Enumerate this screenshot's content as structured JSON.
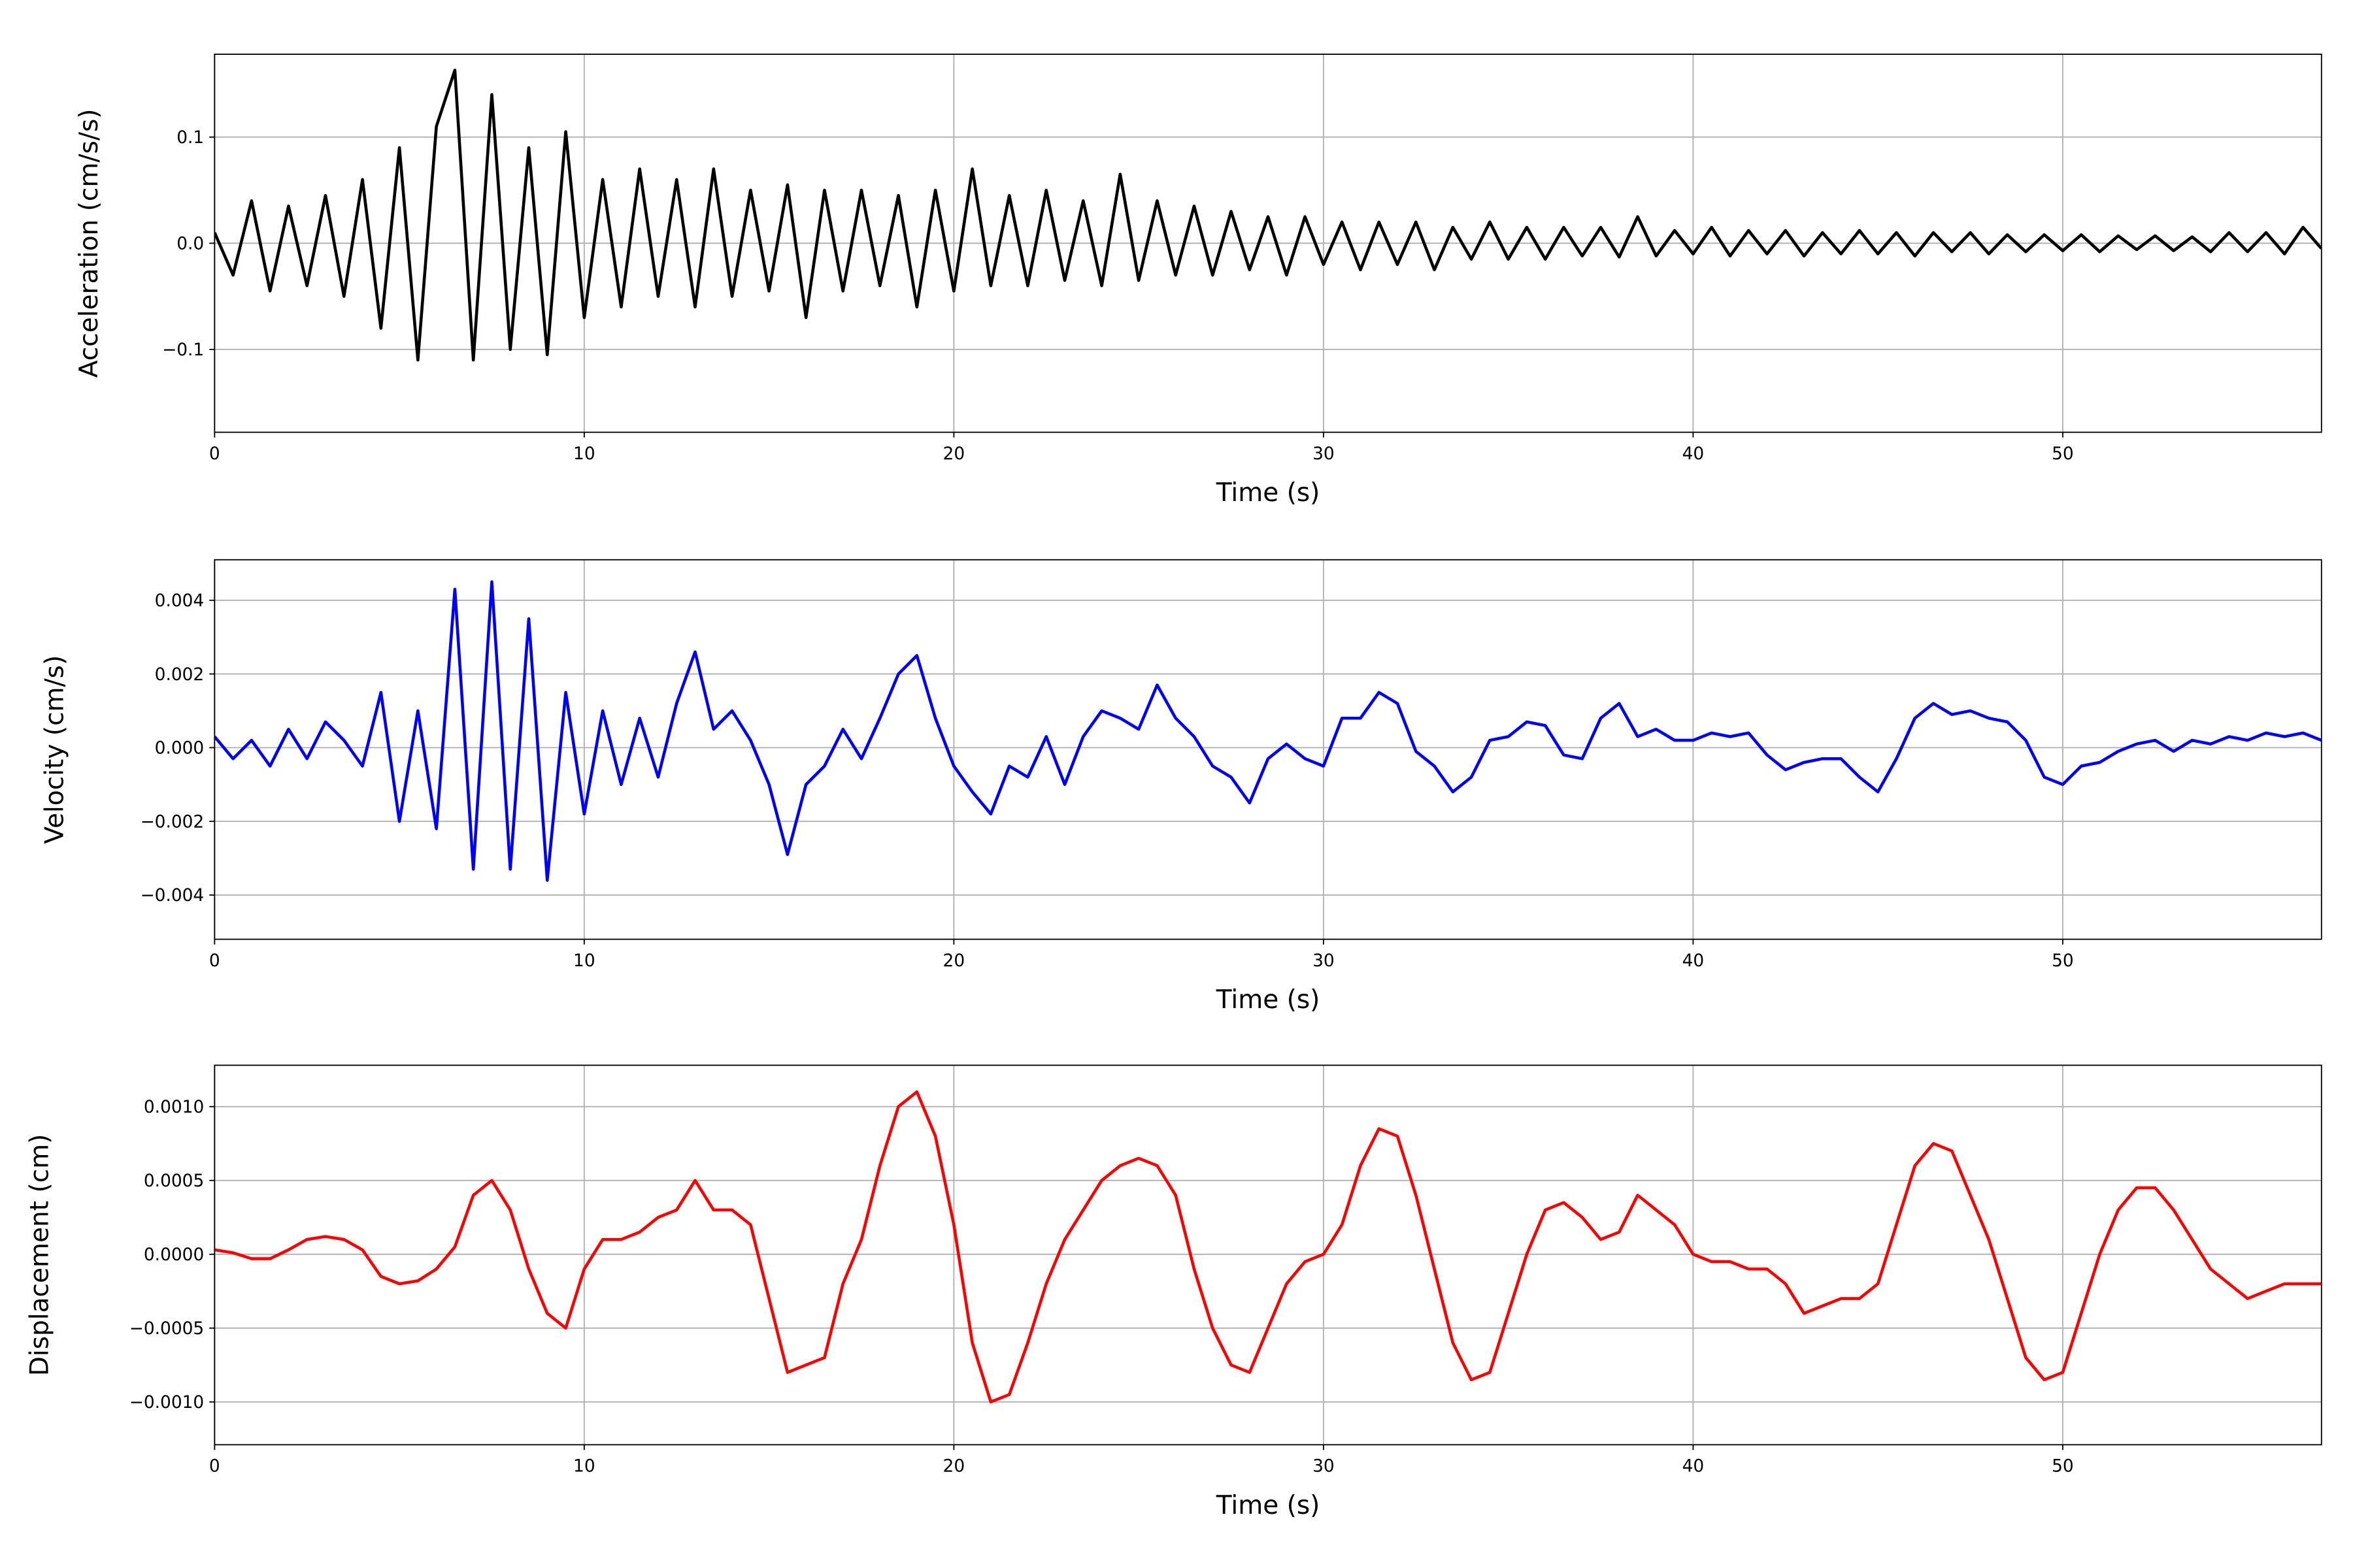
{
  "chart_data": [
    {
      "type": "line",
      "xlabel": "Time (s)",
      "ylabel": "Acceleration (cm/s/s)",
      "x": [
        0,
        0.5,
        1,
        1.5,
        2,
        2.5,
        3,
        3.5,
        4,
        4.5,
        5,
        5.5,
        6,
        6.5,
        7,
        7.5,
        8,
        8.5,
        9,
        9.5,
        10,
        10.5,
        11,
        11.5,
        12,
        12.5,
        13,
        13.5,
        14,
        14.5,
        15,
        15.5,
        16,
        16.5,
        17,
        17.5,
        18,
        18.5,
        19,
        19.5,
        20,
        20.5,
        21,
        21.5,
        22,
        22.5,
        23,
        23.5,
        24,
        24.5,
        25,
        25.5,
        26,
        26.5,
        27,
        27.5,
        28,
        28.5,
        29,
        29.5,
        30,
        30.5,
        31,
        31.5,
        32,
        32.5,
        33,
        33.5,
        34,
        34.5,
        35,
        35.5,
        36,
        36.5,
        37,
        37.5,
        38,
        38.5,
        39,
        39.5,
        40,
        40.5,
        41,
        41.5,
        42,
        42.5,
        43,
        43.5,
        44,
        44.5,
        45,
        45.5,
        46,
        46.5,
        47,
        47.5,
        48,
        48.5,
        49,
        49.5,
        50,
        50.5,
        51,
        51.5,
        52,
        52.5,
        53,
        53.5,
        54,
        54.5,
        55,
        55.5,
        56,
        56.5,
        57
      ],
      "series": [
        {
          "color": "#000000",
          "values": [
            0.01,
            -0.03,
            0.04,
            -0.045,
            0.035,
            -0.04,
            0.045,
            -0.05,
            0.06,
            -0.08,
            0.09,
            -0.11,
            0.11,
            0.163,
            -0.11,
            0.14,
            -0.1,
            0.09,
            -0.105,
            0.105,
            -0.07,
            0.06,
            -0.06,
            0.07,
            -0.05,
            0.06,
            -0.06,
            0.07,
            -0.05,
            0.05,
            -0.045,
            0.055,
            -0.07,
            0.05,
            -0.045,
            0.05,
            -0.04,
            0.045,
            -0.06,
            0.05,
            -0.045,
            0.07,
            -0.04,
            0.045,
            -0.04,
            0.05,
            -0.035,
            0.04,
            -0.04,
            0.065,
            -0.035,
            0.04,
            -0.03,
            0.035,
            -0.03,
            0.03,
            -0.025,
            0.025,
            -0.03,
            0.025,
            -0.02,
            0.02,
            -0.025,
            0.02,
            -0.02,
            0.02,
            -0.025,
            0.015,
            -0.015,
            0.02,
            -0.015,
            0.015,
            -0.015,
            0.015,
            -0.012,
            0.015,
            -0.013,
            0.025,
            -0.012,
            0.012,
            -0.01,
            0.015,
            -0.012,
            0.012,
            -0.01,
            0.012,
            -0.012,
            0.01,
            -0.01,
            0.012,
            -0.01,
            0.01,
            -0.012,
            0.01,
            -0.008,
            0.01,
            -0.01,
            0.008,
            -0.008,
            0.008,
            -0.007,
            0.008,
            -0.008,
            0.007,
            -0.006,
            0.007,
            -0.007,
            0.006,
            -0.008,
            0.01,
            -0.008,
            0.01,
            -0.01,
            0.015,
            -0.005
          ]
        }
      ],
      "xlim": [
        0,
        57
      ],
      "ylim": [
        -0.178,
        0.178
      ],
      "xticks": [
        0,
        10,
        20,
        30,
        40,
        50
      ],
      "yticks": [
        {
          "value": -0.1,
          "label": "−0.1"
        },
        {
          "value": 0,
          "label": "0.0"
        },
        0.1
      ],
      "grid": true
    },
    {
      "type": "line",
      "xlabel": "Time (s)",
      "ylabel": "Velocity (cm/s)",
      "x": [
        0,
        0.5,
        1,
        1.5,
        2,
        2.5,
        3,
        3.5,
        4,
        4.5,
        5,
        5.5,
        6,
        6.5,
        7,
        7.5,
        8,
        8.5,
        9,
        9.5,
        10,
        10.5,
        11,
        11.5,
        12,
        12.5,
        13,
        13.5,
        14,
        14.5,
        15,
        15.5,
        16,
        16.5,
        17,
        17.5,
        18,
        18.5,
        19,
        19.5,
        20,
        20.5,
        21,
        21.5,
        22,
        22.5,
        23,
        23.5,
        24,
        24.5,
        25,
        25.5,
        26,
        26.5,
        27,
        27.5,
        28,
        28.5,
        29,
        29.5,
        30,
        30.5,
        31,
        31.5,
        32,
        32.5,
        33,
        33.5,
        34,
        34.5,
        35,
        35.5,
        36,
        36.5,
        37,
        37.5,
        38,
        38.5,
        39,
        39.5,
        40,
        40.5,
        41,
        41.5,
        42,
        42.5,
        43,
        43.5,
        44,
        44.5,
        45,
        45.5,
        46,
        46.5,
        47,
        47.5,
        48,
        48.5,
        49,
        49.5,
        50,
        50.5,
        51,
        51.5,
        52,
        52.5,
        53,
        53.5,
        54,
        54.5,
        55,
        55.5,
        56,
        56.5,
        57
      ],
      "series": [
        {
          "color": "#0000ff",
          "values": [
            0.0003,
            -0.0003,
            0.0002,
            -0.0005,
            0.0005,
            -0.0003,
            0.0007,
            0.0002,
            -0.0005,
            0.0015,
            -0.002,
            0.001,
            -0.0022,
            0.0043,
            -0.0033,
            0.0045,
            -0.0033,
            0.0035,
            -0.0036,
            0.0015,
            -0.0018,
            0.001,
            -0.001,
            0.0008,
            -0.0008,
            0.0012,
            0.0026,
            0.0005,
            0.001,
            0.0002,
            -0.001,
            -0.0029,
            -0.001,
            -0.0005,
            0.0005,
            -0.0003,
            0.0008,
            0.002,
            0.0025,
            0.0008,
            -0.0005,
            -0.0012,
            -0.0018,
            -0.0005,
            -0.0008,
            0.0003,
            -0.001,
            0.0003,
            0.001,
            0.0008,
            0.0005,
            0.0017,
            0.0008,
            0.0003,
            -0.0005,
            -0.0008,
            -0.0015,
            -0.0003,
            0.0001,
            -0.0003,
            -0.0005,
            0.0008,
            0.0008,
            0.0015,
            0.0012,
            -0.0001,
            -0.0005,
            -0.0012,
            -0.0008,
            0.0002,
            0.0003,
            0.0007,
            0.0006,
            -0.0002,
            -0.0003,
            0.0008,
            0.0012,
            0.0003,
            0.0005,
            0.0002,
            0.0002,
            0.0004,
            0.0003,
            0.0004,
            -0.0002,
            -0.0006,
            -0.0004,
            -0.0003,
            -0.0003,
            -0.0008,
            -0.0012,
            -0.0003,
            0.0008,
            0.0012,
            0.0009,
            0.001,
            0.0008,
            0.0007,
            0.0002,
            -0.0008,
            -0.001,
            -0.0005,
            -0.0004,
            -0.0001,
            0.0001,
            0.0002,
            -0.0001,
            0.0002,
            0.0001,
            0.0003,
            0.0002,
            0.0004,
            0.0003,
            0.0004,
            0.0002
          ]
        }
      ],
      "xlim": [
        0,
        57
      ],
      "ylim": [
        -0.0052,
        0.0051
      ],
      "xticks": [
        0,
        10,
        20,
        30,
        40,
        50
      ],
      "yticks": [
        {
          "value": -0.004,
          "label": "−0.004"
        },
        {
          "value": -0.002,
          "label": "−0.002"
        },
        {
          "value": 0,
          "label": "0.000"
        },
        0.002,
        0.004
      ],
      "grid": true
    },
    {
      "type": "line",
      "xlabel": "Time (s)",
      "ylabel": "Displacement (cm)",
      "x": [
        0,
        0.5,
        1,
        1.5,
        2,
        2.5,
        3,
        3.5,
        4,
        4.5,
        5,
        5.5,
        6,
        6.5,
        7,
        7.5,
        8,
        8.5,
        9,
        9.5,
        10,
        10.5,
        11,
        11.5,
        12,
        12.5,
        13,
        13.5,
        14,
        14.5,
        15,
        15.5,
        16,
        16.5,
        17,
        17.5,
        18,
        18.5,
        19,
        19.5,
        20,
        20.5,
        21,
        21.5,
        22,
        22.5,
        23,
        23.5,
        24,
        24.5,
        25,
        25.5,
        26,
        26.5,
        27,
        27.5,
        28,
        28.5,
        29,
        29.5,
        30,
        30.5,
        31,
        31.5,
        32,
        32.5,
        33,
        33.5,
        34,
        34.5,
        35,
        35.5,
        36,
        36.5,
        37,
        37.5,
        38,
        38.5,
        39,
        39.5,
        40,
        40.5,
        41,
        41.5,
        42,
        42.5,
        43,
        43.5,
        44,
        44.5,
        45,
        45.5,
        46,
        46.5,
        47,
        47.5,
        48,
        48.5,
        49,
        49.5,
        50,
        50.5,
        51,
        51.5,
        52,
        52.5,
        53,
        53.5,
        54,
        54.5,
        55,
        55.5,
        56,
        56.5,
        57
      ],
      "series": [
        {
          "color": "#ff0000",
          "values": [
            3e-05,
            1e-05,
            -3e-05,
            -3e-05,
            3e-05,
            0.0001,
            0.00012,
            0.0001,
            3e-05,
            -0.00015,
            -0.0002,
            -0.00018,
            -0.0001,
            5e-05,
            0.0004,
            0.0005,
            0.0003,
            -0.0001,
            -0.0004,
            -0.0005,
            -0.0001,
            0.0001,
            0.0001,
            0.00015,
            0.00025,
            0.0003,
            0.0005,
            0.0003,
            0.0003,
            0.0002,
            -0.0003,
            -0.0008,
            -0.00075,
            -0.0007,
            -0.0002,
            0.0001,
            0.0006,
            0.001,
            0.0011,
            0.0008,
            0.0002,
            -0.0006,
            -0.001,
            -0.00095,
            -0.0006,
            -0.0002,
            0.0001,
            0.0003,
            0.0005,
            0.0006,
            0.00065,
            0.0006,
            0.0004,
            -0.0001,
            -0.0005,
            -0.00075,
            -0.0008,
            -0.0005,
            -0.0002,
            -5e-05,
            0,
            0.0002,
            0.0006,
            0.00085,
            0.0008,
            0.0004,
            -0.0001,
            -0.0006,
            -0.00085,
            -0.0008,
            -0.0004,
            0,
            0.0003,
            0.00035,
            0.00025,
            0.0001,
            0.00015,
            0.0004,
            0.0003,
            0.0002,
            0,
            -5e-05,
            -5e-05,
            -0.0001,
            -0.0001,
            -0.0002,
            -0.0004,
            -0.00035,
            -0.0003,
            -0.0003,
            -0.0002,
            0.0002,
            0.0006,
            0.00075,
            0.0007,
            0.0004,
            0.0001,
            -0.0003,
            -0.0007,
            -0.00085,
            -0.0008,
            -0.0004,
            0,
            0.0003,
            0.00045,
            0.00045,
            0.0003,
            0.0001,
            -0.0001,
            -0.0002,
            -0.0003,
            -0.00025,
            -0.0002,
            -0.0002,
            -0.0002
          ]
        }
      ],
      "xlim": [
        0,
        57
      ],
      "ylim": [
        -0.00129,
        0.00128
      ],
      "xticks": [
        0,
        10,
        20,
        30,
        40,
        50
      ],
      "yticks": [
        {
          "value": -0.001,
          "label": "−0.0010"
        },
        {
          "value": -0.0005,
          "label": "−0.0005"
        },
        {
          "value": 0,
          "label": "0.0000"
        },
        {
          "value": 0.0005,
          "label": "0.0005"
        },
        {
          "value": 0.001,
          "label": "0.0010"
        }
      ],
      "grid": true
    }
  ]
}
